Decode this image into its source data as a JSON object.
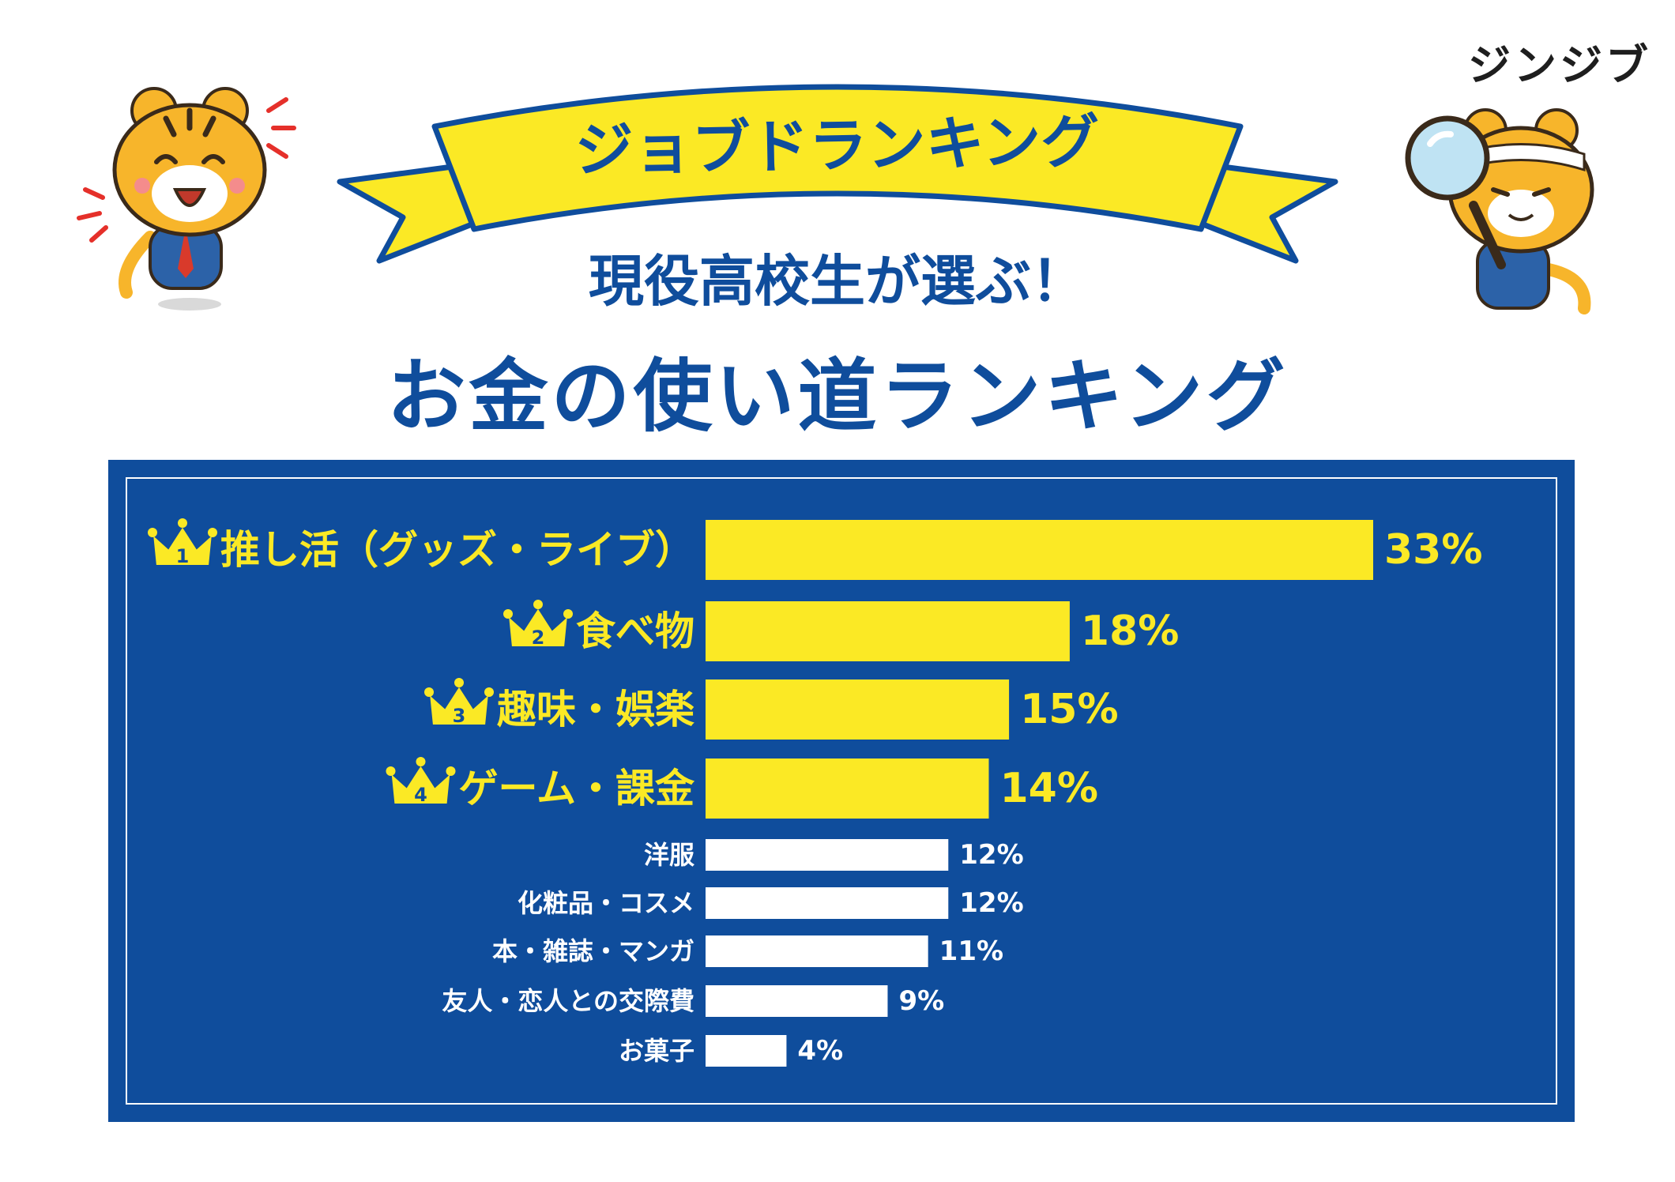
{
  "brand": {
    "logo_text": "ジンジブ"
  },
  "banner": {
    "text": "ジョブドランキング"
  },
  "headline": {
    "line1": "現役高校生が選ぶ！",
    "line2": "お金の使い道ランキング"
  },
  "colors": {
    "navy": "#0f4d9c",
    "yellow": "#fbe925",
    "white": "#ffffff",
    "tiger_orange": "#f7b52b"
  },
  "mascots": {
    "left": "tiger-mascot-cheering-icon",
    "right": "tiger-mascot-magnifier-icon"
  },
  "chart_data": {
    "type": "bar",
    "orientation": "horizontal",
    "categories": [
      "推し活（グッズ・ライブ）",
      "食べ物",
      "趣味・娯楽",
      "ゲーム・課金",
      "洋服",
      "化粧品・コスメ",
      "本・雑誌・マンガ",
      "友人・恋人との交際費",
      "お菓子"
    ],
    "values": [
      33,
      18,
      15,
      14,
      12,
      12,
      11,
      9,
      4
    ],
    "value_labels": [
      "33%",
      "18%",
      "15%",
      "14%",
      "12%",
      "12%",
      "11%",
      "9%",
      "4%"
    ],
    "ranks": [
      "1",
      "2",
      "3",
      "4"
    ],
    "unit": "%",
    "title": "",
    "xlabel": "",
    "ylabel": "",
    "xlim": [
      0,
      33
    ],
    "grid": false,
    "legend": "none"
  }
}
